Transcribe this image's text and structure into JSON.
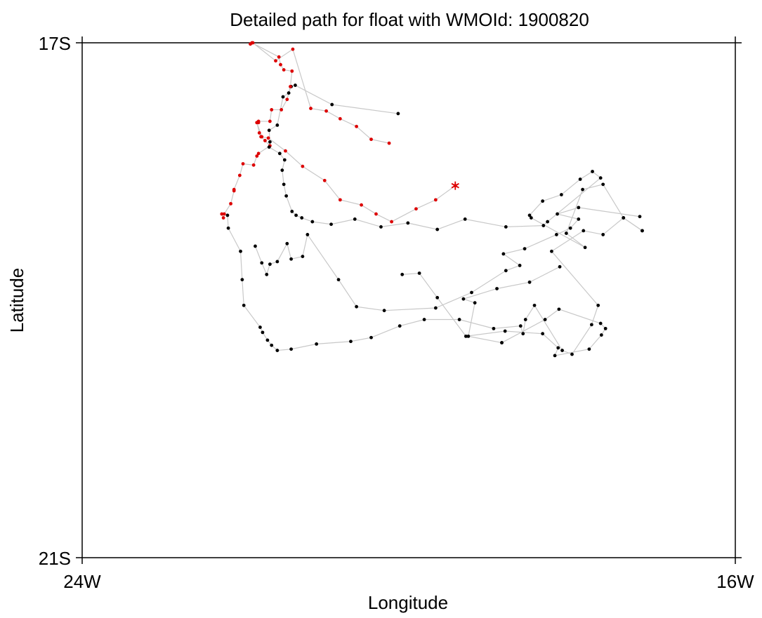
{
  "chart_data": {
    "type": "line",
    "title": "Detailed path for float with WMOId: 1900820",
    "xlabel": "Longitude",
    "ylabel": "Latitude",
    "xlim": [
      -24,
      -16
    ],
    "ylim": [
      -21,
      -17
    ],
    "x_ticks": [
      {
        "value": -24,
        "label": "24W"
      },
      {
        "value": -16,
        "label": "16W"
      }
    ],
    "y_ticks": [
      {
        "value": -17,
        "label": "17S"
      },
      {
        "value": -21,
        "label": "21S"
      }
    ],
    "grid": false,
    "legend": "none",
    "line_color": "#c8c8c8",
    "series": [
      {
        "color": "#000000",
        "marker": "dot",
        "lon": [
          -17.14,
          -17.37,
          -17.62,
          -17.87,
          -18.07,
          -17.84,
          -18.5,
          -18.52,
          -18.36,
          -18.13,
          -17.9,
          -17.75,
          -17.65,
          -18.3,
          -18.35,
          -18.81,
          -19.31,
          -19.65,
          -20.01,
          -20.34,
          -20.66,
          -20.95,
          -21.18,
          -21.31,
          -21.38,
          -21.43,
          -21.5,
          -21.53,
          -21.55,
          -21.52,
          -21.58,
          -21.71,
          -21.7,
          -21.71,
          -21.61,
          -21.54,
          -21.47,
          -21.44,
          -21.39,
          -20.94,
          -20.13
        ],
        "lat": [
          -18.46,
          -18.36,
          -18.1,
          -18.14,
          -18.48,
          -18.59,
          -18.36,
          -18.34,
          -18.23,
          -18.18,
          -18.06,
          -18.0,
          -18.05,
          -18.39,
          -18.42,
          -18.43,
          -18.37,
          -18.45,
          -18.4,
          -18.43,
          -18.37,
          -18.41,
          -18.39,
          -18.36,
          -18.34,
          -18.31,
          -18.19,
          -18.1,
          -17.99,
          -17.91,
          -17.86,
          -17.81,
          -17.77,
          -17.68,
          -17.64,
          -17.42,
          -17.39,
          -17.34,
          -17.33,
          -17.48,
          -17.55
        ]
      },
      {
        "color": "#dd0000",
        "marker": "dot",
        "lon": [
          -21.86,
          -21.84,
          -21.84,
          -21.7,
          -21.68,
          -21.56,
          -21.49,
          -21.45,
          -21.43,
          -21.53,
          -21.57,
          -21.59,
          -21.92,
          -21.94,
          -21.91,
          -21.63,
          -21.42,
          -21.2,
          -21.01,
          -20.84,
          -20.64,
          -20.46,
          -20.24
        ],
        "lat": [
          -17.62,
          -17.62,
          -17.61,
          -17.61,
          -17.52,
          -17.52,
          -17.44,
          -17.34,
          -17.22,
          -17.21,
          -17.17,
          -17.11,
          -17.0,
          -17.01,
          -17.0,
          -17.14,
          -17.05,
          -17.51,
          -17.53,
          -17.59,
          -17.65,
          -17.75,
          -17.78
        ]
      },
      {
        "color": "#000000",
        "marker": "dot",
        "lon": [
          -20.08,
          -19.87,
          -19.65,
          -19.3,
          -18.82,
          -18.36,
          -18.17,
          -18.21,
          -17.79,
          -17.64,
          -17.59,
          -17.65,
          -18.16,
          -18.33,
          -18.86
        ],
        "lat": [
          -18.8,
          -18.79,
          -18.98,
          -19.28,
          -19.24,
          -19.26,
          -19.37,
          -19.43,
          -19.38,
          -19.27,
          -19.22,
          -19.18,
          -19.07,
          -19.15,
          -19.33
        ]
      },
      {
        "color": "#000000",
        "marker": "dot",
        "lon": [
          -18.86,
          -19.27,
          -19.19,
          -19.33,
          -18.92,
          -18.52,
          -18.15
        ],
        "lat": [
          -19.33,
          -19.28,
          -19.02,
          -18.99,
          -18.91,
          -18.86,
          -18.74
        ]
      },
      {
        "color": "#000000",
        "marker": "dot",
        "lon": [
          -21.88,
          -21.8,
          -21.74,
          -21.7,
          -21.61,
          -21.49,
          -21.44,
          -21.3,
          -21.24,
          -20.86,
          -20.64,
          -20.3,
          -19.67,
          -19.23,
          -18.81,
          -18.64,
          -18.84,
          -18.58,
          -18.19,
          -18.02,
          -17.92,
          -18.18,
          -17.92,
          -17.17
        ],
        "lat": [
          -18.58,
          -18.71,
          -18.8,
          -18.72,
          -18.7,
          -18.56,
          -18.68,
          -18.66,
          -18.49,
          -18.84,
          -19.05,
          -19.08,
          -19.06,
          -18.94,
          -18.77,
          -18.73,
          -18.64,
          -18.6,
          -18.49,
          -18.44,
          -18.37,
          -18.33,
          -18.28,
          -18.35
        ]
      }
    ],
    "path": {
      "color": "#000000",
      "lon": [
        -22.22,
        -22.21,
        -22.06,
        -22.04,
        -22.02,
        -21.82,
        -21.79,
        -21.73,
        -21.68,
        -21.61,
        -21.44,
        -21.13,
        -20.71,
        -20.46,
        -20.11,
        -19.81,
        -19.38,
        -18.96,
        -18.63,
        -18.6,
        -18.57,
        -18.46,
        -18.12,
        -18.0,
        -17.76,
        -17.68,
        -18.25,
        -17.86,
        -17.62,
        -17.37,
        -17.14
      ],
      "lat": [
        -18.34,
        -18.44,
        -18.62,
        -18.84,
        -19.04,
        -19.21,
        -19.25,
        -19.31,
        -19.35,
        -19.39,
        -19.38,
        -19.34,
        -19.32,
        -19.29,
        -19.2,
        -19.15,
        -19.15,
        -19.22,
        -19.2,
        -19.26,
        -19.15,
        -19.04,
        -19.39,
        -19.42,
        -19.19,
        -19.04,
        -18.62,
        -18.46,
        -18.49,
        -18.36,
        -18.46
      ]
    },
    "red_path": {
      "color": "#dd0000",
      "lon": [
        -22.27,
        -22.29,
        -22.26,
        -22.18,
        -22.14,
        -22.14,
        -22.07,
        -22.03,
        -21.9,
        -21.86,
        -21.84,
        -21.7,
        -21.76,
        -21.81,
        -21.83,
        -21.86,
        -21.8,
        -21.72,
        -21.51,
        -21.3,
        -21.03,
        -20.84,
        -20.58,
        -20.4,
        -20.21,
        -19.91,
        -19.67,
        -19.43
      ],
      "lat": [
        -18.36,
        -18.33,
        -18.33,
        -18.25,
        -18.15,
        -18.14,
        -18.03,
        -17.94,
        -17.95,
        -17.88,
        -17.86,
        -17.8,
        -17.76,
        -17.73,
        -17.7,
        -17.62,
        -17.73,
        -17.74,
        -17.84,
        -17.96,
        -18.07,
        -18.22,
        -18.26,
        -18.33,
        -18.39,
        -18.29,
        -18.22,
        -18.11
      ]
    },
    "last_position": {
      "lon": -19.43,
      "lat": -18.11,
      "marker": "asterisk",
      "color": "#dd0000"
    }
  }
}
